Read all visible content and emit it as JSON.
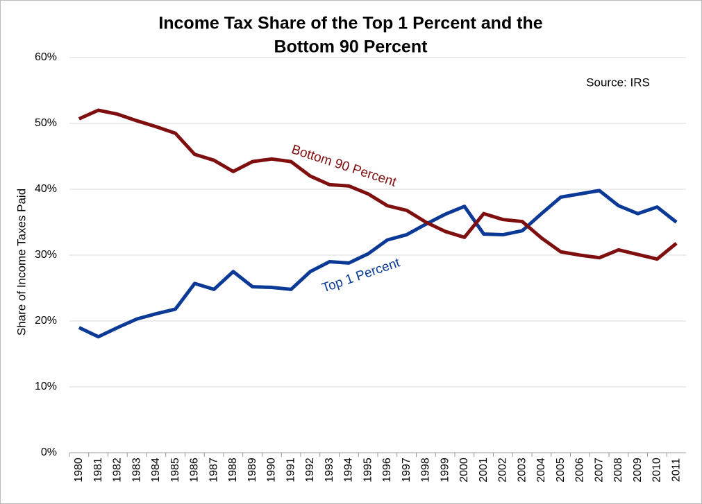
{
  "chart_data": {
    "type": "line",
    "title": [
      "Income Tax Share of the Top 1 Percent and the",
      "Bottom 90 Percent"
    ],
    "y_label": "Share of Income Taxes Paid",
    "annotation": "Source: IRS",
    "categories": [
      "1980",
      "1981",
      "1982",
      "1983",
      "1984",
      "1985",
      "1986",
      "1987",
      "1988",
      "1989",
      "1990",
      "1991",
      "1992",
      "1993",
      "1994",
      "1995",
      "1996",
      "1997",
      "1998",
      "1999",
      "2000",
      "2001",
      "2002",
      "2003",
      "2004",
      "2005",
      "2006",
      "2007",
      "2008",
      "2009",
      "2010",
      "2011"
    ],
    "series": [
      {
        "name": "Top 1 Percent",
        "color": "#0b3a96",
        "values": [
          19.0,
          17.6,
          19.0,
          20.3,
          21.1,
          21.8,
          25.7,
          24.8,
          27.5,
          25.2,
          25.1,
          24.8,
          27.5,
          29.0,
          28.8,
          30.2,
          32.3,
          33.1,
          34.7,
          36.2,
          37.4,
          33.2,
          33.1,
          33.7,
          36.3,
          38.8,
          39.3,
          39.8,
          37.5,
          36.3,
          37.3,
          35.0
        ]
      },
      {
        "name": "Bottom 90 Percent",
        "color": "#7f0f0f",
        "values": [
          50.7,
          52.0,
          51.4,
          50.4,
          49.5,
          48.5,
          45.3,
          44.4,
          42.7,
          44.2,
          44.6,
          44.2,
          42.0,
          40.7,
          40.5,
          39.3,
          37.5,
          36.8,
          35.0,
          33.6,
          32.7,
          36.3,
          35.4,
          35.1,
          32.6,
          30.5,
          30.0,
          29.6,
          30.8,
          30.1,
          29.4,
          31.8
        ]
      }
    ],
    "ylim": [
      0,
      60
    ],
    "yticks": [
      {
        "value": 0,
        "label": "0%"
      },
      {
        "value": 10,
        "label": "10%"
      },
      {
        "value": 20,
        "label": "20%"
      },
      {
        "value": 30,
        "label": "30%"
      },
      {
        "value": 40,
        "label": "40%"
      },
      {
        "value": 50,
        "label": "50%"
      },
      {
        "value": 60,
        "label": "60%"
      }
    ],
    "grid": true
  }
}
